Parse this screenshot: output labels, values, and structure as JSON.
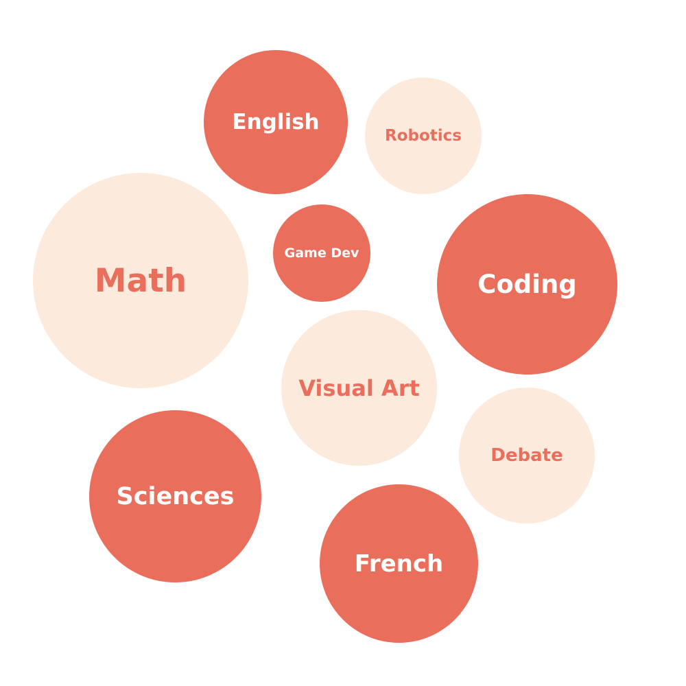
{
  "colors": {
    "dark_fill": "#ea6e5c",
    "dark_text": "#ffffff",
    "light_fill": "#fcebdd",
    "light_text": "#ea6e5c",
    "background": "#ffffff"
  },
  "bubbles": [
    {
      "label": "English",
      "style": "dark"
    },
    {
      "label": "Robotics",
      "style": "light"
    },
    {
      "label": "Math",
      "style": "light"
    },
    {
      "label": "Game Dev",
      "style": "dark"
    },
    {
      "label": "Coding",
      "style": "dark"
    },
    {
      "label": "Visual Art",
      "style": "light"
    },
    {
      "label": "Debate",
      "style": "light"
    },
    {
      "label": "Sciences",
      "style": "dark"
    },
    {
      "label": "French",
      "style": "dark"
    }
  ]
}
